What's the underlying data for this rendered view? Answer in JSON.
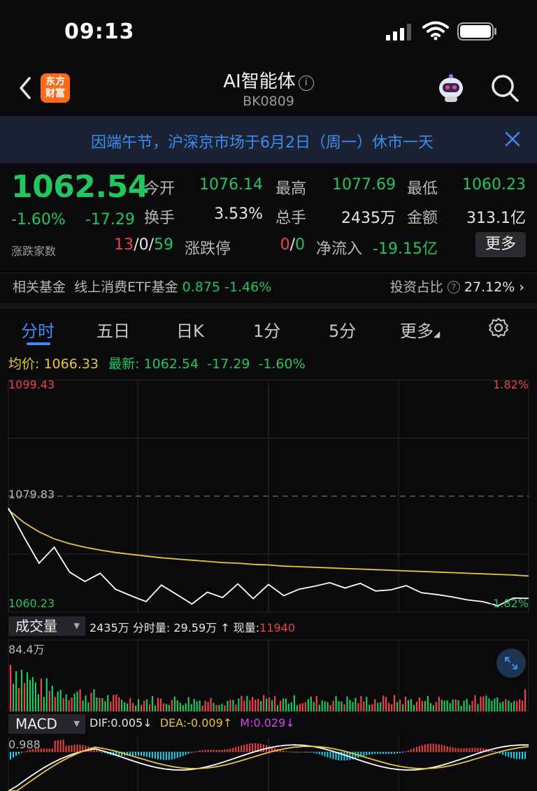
{
  "status": {
    "time": "09:13"
  },
  "nav": {
    "logo_line1": "东方",
    "logo_line2": "财富",
    "title": "AI智能体",
    "code": "BK0809"
  },
  "notice": {
    "text": "因端午节，沪深京市场于6月2日（周一）休市一天"
  },
  "quote": {
    "price": "1062.54",
    "change_pct": "-1.60%",
    "change": "-17.29",
    "stats": [
      {
        "label": "今开",
        "value": "1076.14"
      },
      {
        "label": "最高",
        "value": "1077.69"
      },
      {
        "label": "最低",
        "value": "1060.23"
      },
      {
        "label": "换手",
        "value": "3.53%"
      },
      {
        "label": "总手",
        "value": "2435万"
      },
      {
        "label": "金额",
        "value": "313.1亿"
      }
    ],
    "breadth_label": "涨跌家数",
    "up": "13",
    "flat": "0",
    "down": "59",
    "limit_label": "涨跌停",
    "limit_up": "0",
    "limit_down": "0",
    "netflow_label": "净流入",
    "netflow": "-19.15亿",
    "more": "更多"
  },
  "fund": {
    "label": "相关基金",
    "name": "线上消费ETF基金",
    "value": "0.875",
    "pct": "-1.46%",
    "ratio_label": "投资占比",
    "ratio": "27.12%"
  },
  "tabs": [
    "分时",
    "五日",
    "日K",
    "1分",
    "5分",
    "更多"
  ],
  "legend": {
    "avg_label": "均价:",
    "avg": "1066.33",
    "last_label": "最新:",
    "last": "1062.54",
    "chg": "-17.29",
    "pct": "-1.60%"
  },
  "chart_data": {
    "type": "line",
    "ylim": [
      1060.23,
      1099.43
    ],
    "ref_price": "1079.83",
    "y_top": "1099.43",
    "y_bottom": "1060.23",
    "pct_top": "1.82%",
    "pct_bottom": "-1.82%",
    "series": [
      {
        "name": "均价",
        "values": [
          1077.5,
          1075.4,
          1073.8,
          1072.6,
          1071.8,
          1071.2,
          1070.7,
          1070.3,
          1070.0,
          1069.7,
          1069.4,
          1069.2,
          1069.0,
          1068.8,
          1068.6,
          1068.5,
          1068.3,
          1068.2,
          1068.0,
          1067.9,
          1067.8,
          1067.7,
          1067.6,
          1067.5,
          1067.4,
          1067.3,
          1067.2,
          1067.1,
          1067.0,
          1066.9,
          1066.8,
          1066.7,
          1066.6,
          1066.5,
          1066.33
        ]
      },
      {
        "name": "最新",
        "values": [
          1077.8,
          1073.0,
          1068.5,
          1071.2,
          1067.0,
          1065.4,
          1066.8,
          1064.1,
          1063.0,
          1062.0,
          1064.8,
          1063.2,
          1061.6,
          1063.6,
          1062.7,
          1065.0,
          1062.5,
          1064.9,
          1063.0,
          1064.1,
          1064.6,
          1065.2,
          1064.3,
          1065.1,
          1063.8,
          1064.0,
          1064.7,
          1063.5,
          1063.2,
          1062.8,
          1062.3,
          1062.0,
          1061.3,
          1062.6,
          1062.54
        ]
      }
    ]
  },
  "volume": {
    "selector": "成交量",
    "total": "2435万",
    "minute_label": "分时量:",
    "minute": "29.59万",
    "current_label": "现量:",
    "current": "11940",
    "max_label": "84.4万"
  },
  "macd": {
    "selector": "MACD",
    "dif": "DIF:0.005",
    "dea": "DEA:-0.009",
    "m": "M:0.029",
    "max_label": "0.988"
  },
  "colors": {
    "up": "#ef4444",
    "down": "#22c55e",
    "accent": "#3d8bf2",
    "avg": "#e8c53a"
  }
}
